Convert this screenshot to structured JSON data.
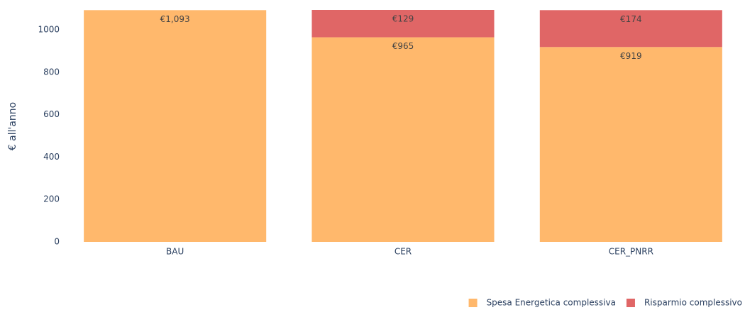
{
  "chart_data": {
    "type": "stacked_bar",
    "y_label": "€ all'anno",
    "categories": [
      "BAU",
      "CER",
      "CER_PNRR"
    ],
    "series": [
      {
        "name": "Spesa Energetica complessiva",
        "color": "#ffb86c",
        "values": [
          1093,
          965,
          919
        ],
        "value_labels": [
          "€1,093",
          "€965",
          "€919"
        ]
      },
      {
        "name": "Risparmio complessivo",
        "color": "#e06666",
        "values": [
          null,
          129,
          174
        ],
        "value_labels": [
          null,
          "€129",
          "€174"
        ]
      }
    ],
    "ylim": [
      0,
      1094
    ],
    "yticks": [
      0,
      200,
      400,
      600,
      800,
      1000
    ],
    "grid": false,
    "legend": "bottom-right"
  }
}
